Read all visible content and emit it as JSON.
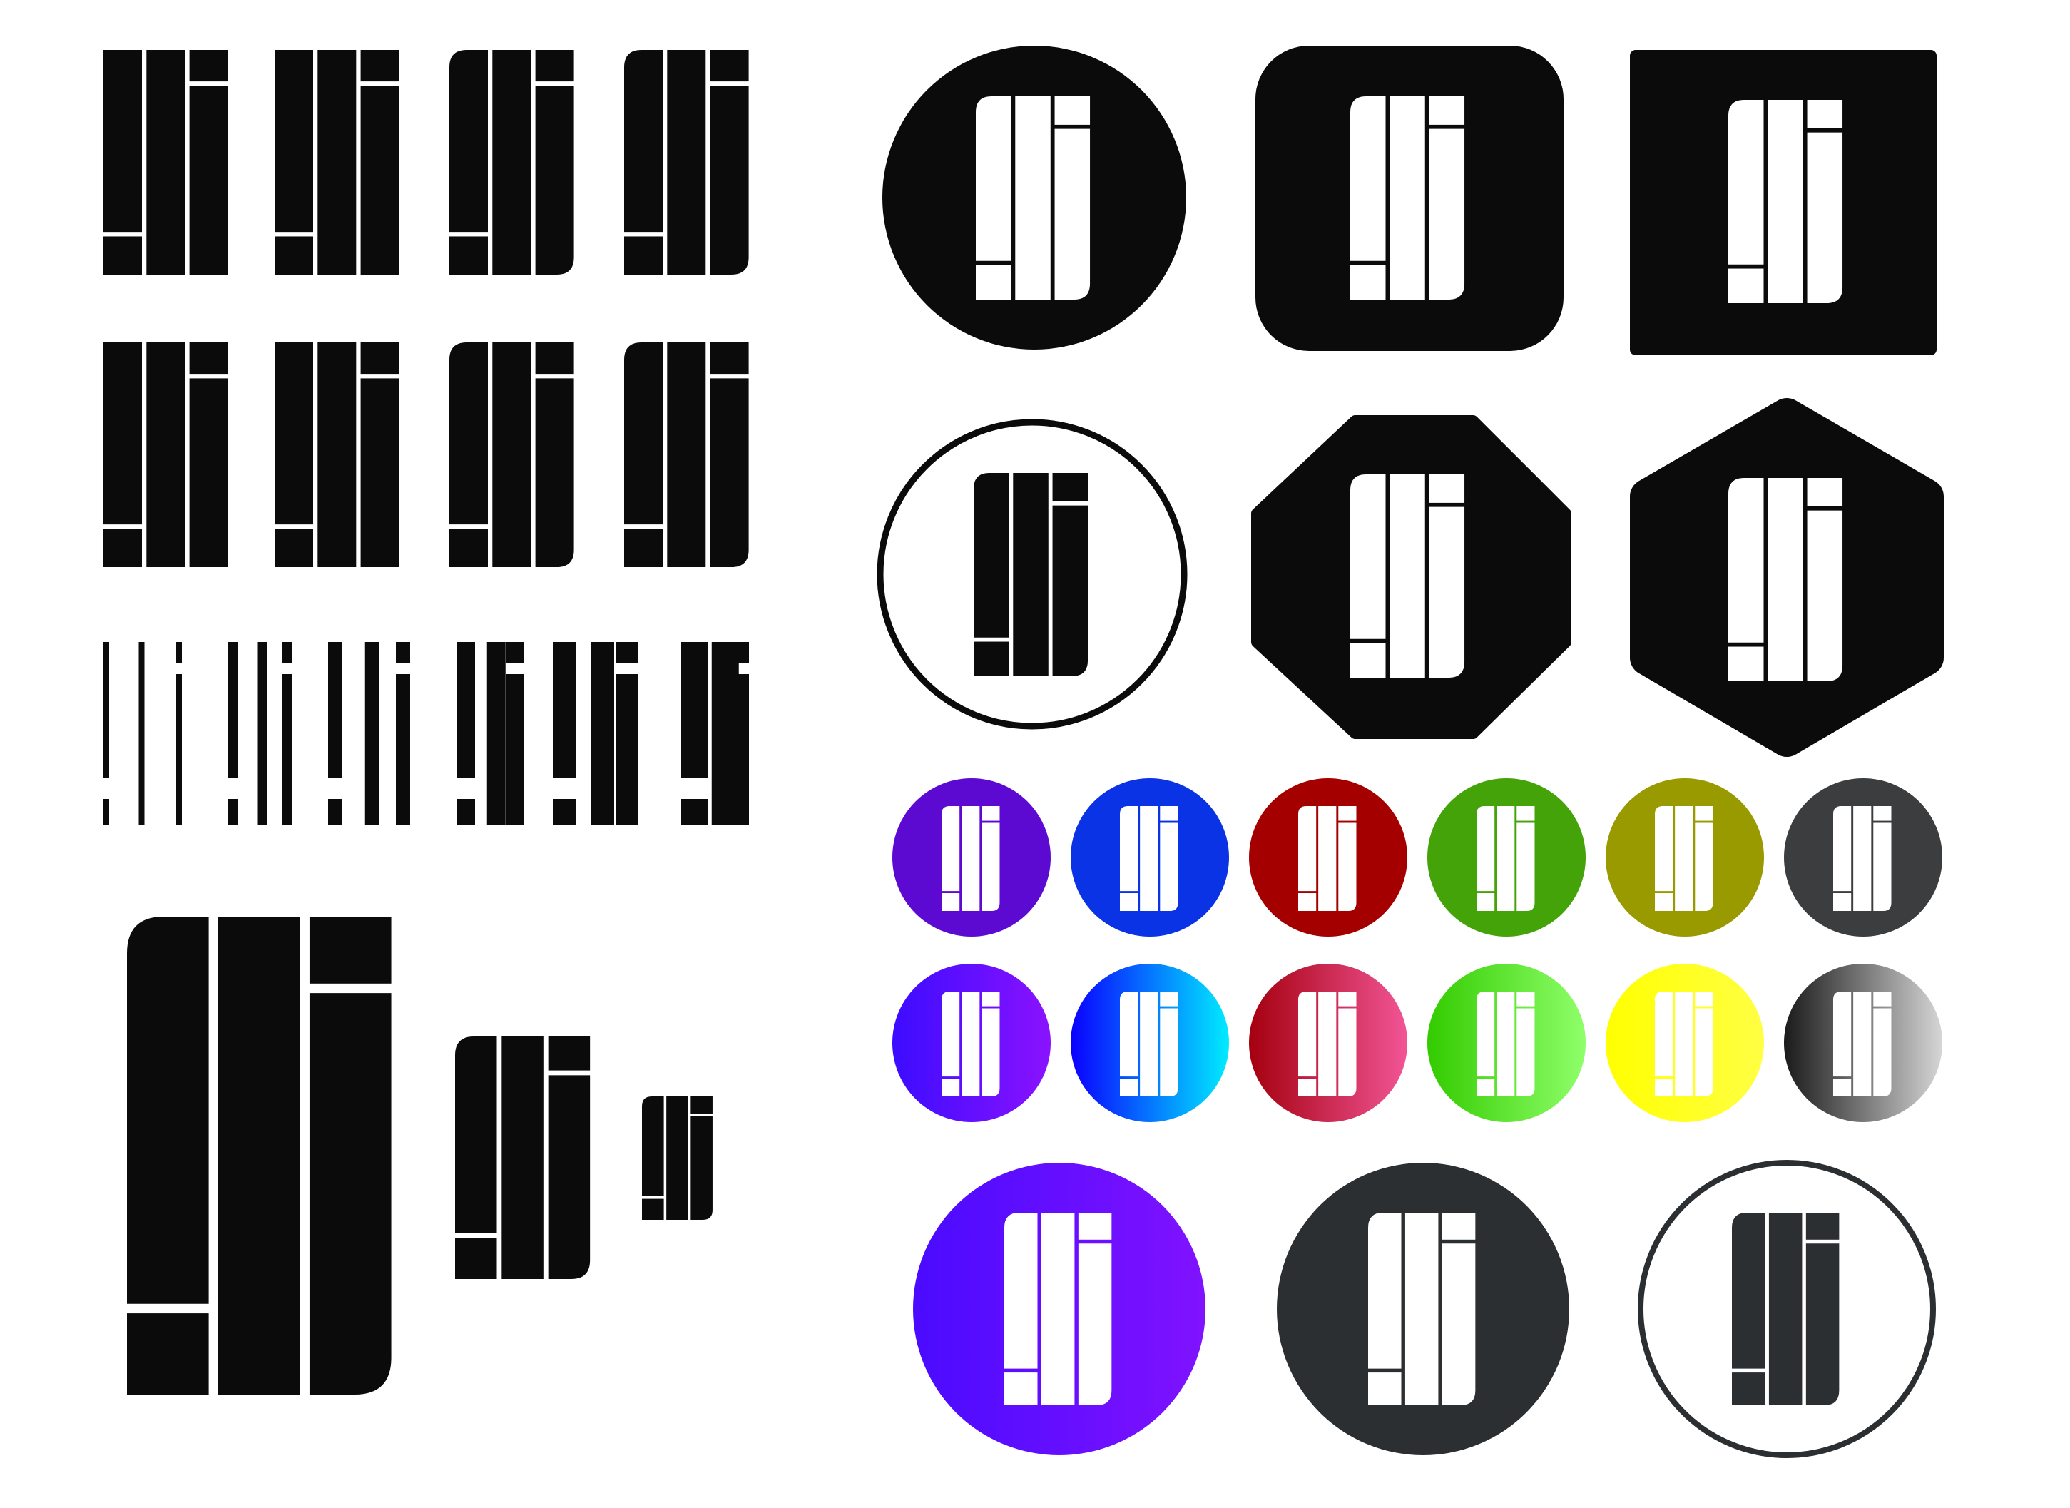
{
  "sheet": {
    "title": "",
    "background": "#ffffff"
  },
  "logo": {
    "glyph_name": "exclamation-l-i-monogram",
    "ink": "#0b0b0c",
    "knockout": "#ffffff"
  },
  "variants": {
    "wordmark_rows": 2,
    "wordmark_columns": 4,
    "stroke_weight_variants": 6,
    "size_variants": 3,
    "shape_badges": [
      "circle",
      "rounded-square",
      "square",
      "outline-circle",
      "octagon",
      "hexagon"
    ]
  },
  "palette": {
    "solid": [
      "#5c0ad2",
      "#0b33e6",
      "#a50000",
      "#45a30a",
      "#999a00",
      "#3b3d3f"
    ],
    "gradients": [
      [
        "#3c0cff",
        "#8a12ff"
      ],
      [
        "#0a00ff",
        "#00ecff"
      ],
      [
        "#a5000f",
        "#f25596"
      ],
      [
        "#33cb00",
        "#8fff6a"
      ],
      [
        "#ffff00",
        "#ffff44"
      ],
      [
        "#1a1a1a",
        "#d6d6d6"
      ]
    ],
    "feature": {
      "gradient": [
        "#4a0bff",
        "#8012ff"
      ],
      "dark": "#2b2f31",
      "outline": "#2b2f31"
    }
  }
}
